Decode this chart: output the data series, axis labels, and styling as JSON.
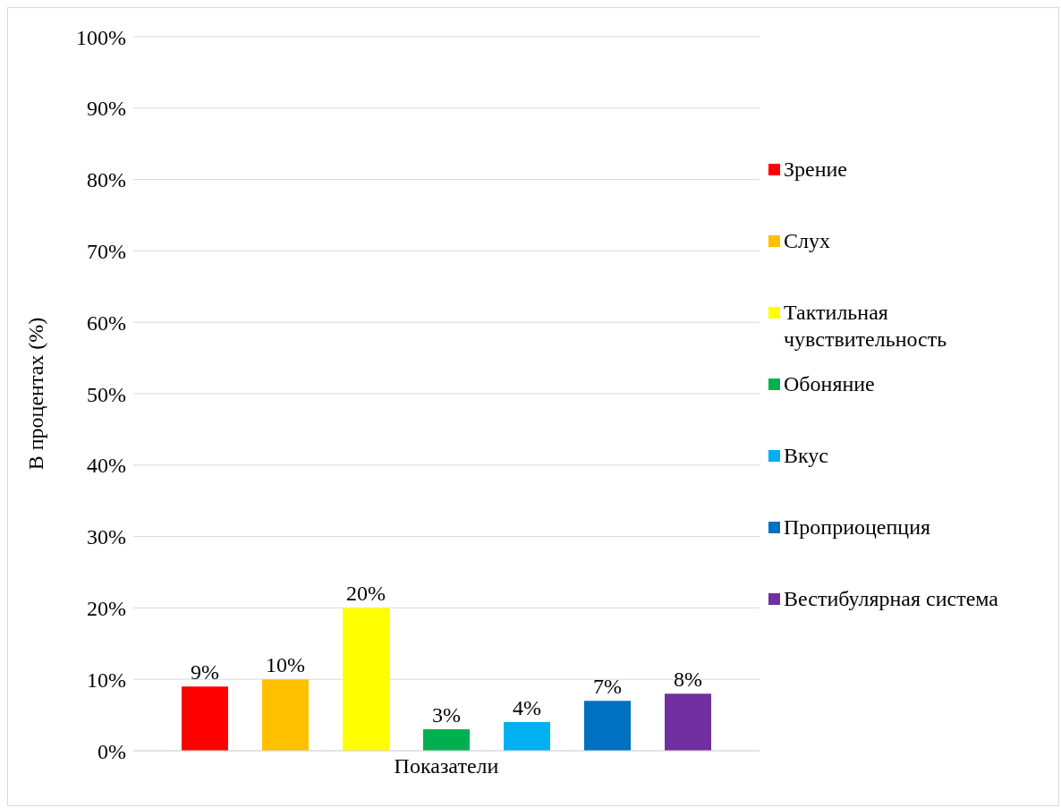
{
  "chart_data": {
    "type": "bar",
    "categories": [
      "Показатели"
    ],
    "ylabel": "В процентах (%)",
    "series": [
      {
        "name": "Зрение",
        "color": "#ff0000",
        "values": [
          9
        ],
        "value_labels": [
          "9%"
        ]
      },
      {
        "name": "Слух",
        "color": "#ffc000",
        "values": [
          10
        ],
        "value_labels": [
          "10%"
        ]
      },
      {
        "name": "Тактильная чувствительность",
        "color": "#ffff00",
        "values": [
          20
        ],
        "value_labels": [
          "20%"
        ]
      },
      {
        "name": "Обоняние",
        "color": "#00b050",
        "values": [
          3
        ],
        "value_labels": [
          "3%"
        ]
      },
      {
        "name": "Вкус",
        "color": "#00b0f0",
        "values": [
          4
        ],
        "value_labels": [
          "4%"
        ]
      },
      {
        "name": "Проприоцепция",
        "color": "#0070c0",
        "values": [
          7
        ],
        "value_labels": [
          "7%"
        ]
      },
      {
        "name": "Вестибулярная система",
        "color": "#7030a0",
        "values": [
          8
        ],
        "value_labels": [
          "8%"
        ]
      }
    ],
    "ylim": [
      0,
      100
    ],
    "yticks": [
      {
        "value": 0,
        "label": "0%"
      },
      {
        "value": 10,
        "label": "10%"
      },
      {
        "value": 20,
        "label": "20%"
      },
      {
        "value": 30,
        "label": "30%"
      },
      {
        "value": 40,
        "label": "40%"
      },
      {
        "value": 50,
        "label": "50%"
      },
      {
        "value": 60,
        "label": "60%"
      },
      {
        "value": 70,
        "label": "70%"
      },
      {
        "value": 80,
        "label": "80%"
      },
      {
        "value": 90,
        "label": "90%"
      },
      {
        "value": 100,
        "label": "100%"
      }
    ],
    "grid": "y",
    "legend": "right"
  }
}
